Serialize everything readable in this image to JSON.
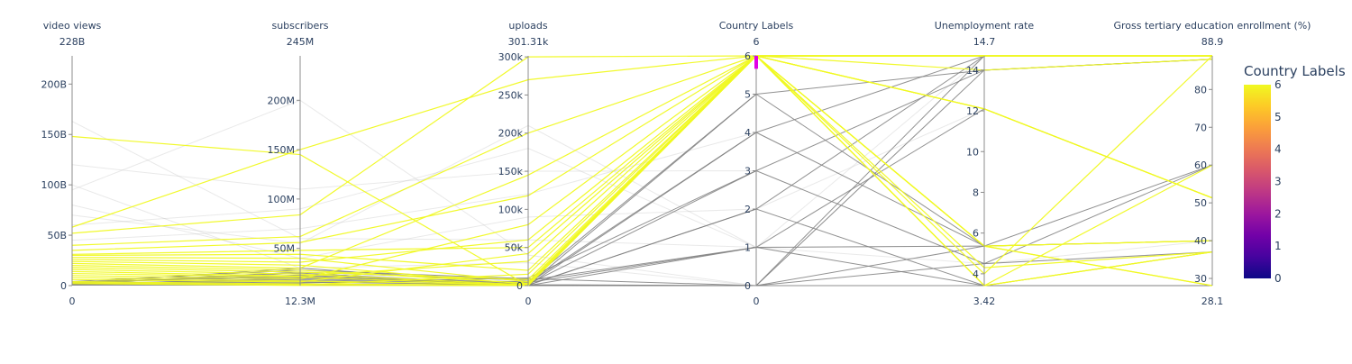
{
  "chart_data": {
    "type": "parcoords",
    "color_variable": "Country Labels",
    "colorscale": [
      "#0d0887",
      "#46039f",
      "#7201a8",
      "#9c179e",
      "#bd3786",
      "#d8576b",
      "#ed7953",
      "#fb9f3a",
      "#fdca26",
      "#f0f921"
    ],
    "filtered_color": "#7f7f7f",
    "selection_color": "#e000e6",
    "constraint": {
      "dimension": "Country Labels",
      "range": [
        5.85,
        6.0
      ]
    },
    "dimensions": [
      {
        "label": "video views",
        "range_label_max": "228B",
        "range_label_min": "0",
        "range": [
          0,
          228000000000
        ],
        "ticks": [
          {
            "v": 0,
            "t": "0"
          },
          {
            "v": 50000000000,
            "t": "50B"
          },
          {
            "v": 100000000000,
            "t": "100B"
          },
          {
            "v": 150000000000,
            "t": "150B"
          },
          {
            "v": 200000000000,
            "t": "200B"
          }
        ]
      },
      {
        "label": "subscribers",
        "range_label_max": "245M",
        "range_label_min": "12.3M",
        "range": [
          12300000,
          245000000
        ],
        "ticks": [
          {
            "v": 50000000,
            "t": "50M"
          },
          {
            "v": 100000000,
            "t": "100M"
          },
          {
            "v": 150000000,
            "t": "150M"
          },
          {
            "v": 200000000,
            "t": "200M"
          }
        ]
      },
      {
        "label": "uploads",
        "range_label_max": "301.31k",
        "range_label_min": "0",
        "range": [
          0,
          301310
        ],
        "ticks": [
          {
            "v": 0,
            "t": "0"
          },
          {
            "v": 50000,
            "t": "50k"
          },
          {
            "v": 100000,
            "t": "100k"
          },
          {
            "v": 150000,
            "t": "150k"
          },
          {
            "v": 200000,
            "t": "200k"
          },
          {
            "v": 250000,
            "t": "250k"
          },
          {
            "v": 300000,
            "t": "300k"
          }
        ]
      },
      {
        "label": "Country Labels",
        "range_label_max": "6",
        "range_label_min": "0",
        "range": [
          0,
          6
        ],
        "ticks": [
          {
            "v": 0,
            "t": "0"
          },
          {
            "v": 1,
            "t": "1"
          },
          {
            "v": 2,
            "t": "2"
          },
          {
            "v": 3,
            "t": "3"
          },
          {
            "v": 4,
            "t": "4"
          },
          {
            "v": 5,
            "t": "5"
          },
          {
            "v": 6,
            "t": "6"
          }
        ]
      },
      {
        "label": "Unemployment rate",
        "range_label_max": "14.7",
        "range_label_min": "3.42",
        "range": [
          3.42,
          14.7
        ],
        "ticks": [
          {
            "v": 4,
            "t": "4"
          },
          {
            "v": 6,
            "t": "6"
          },
          {
            "v": 8,
            "t": "8"
          },
          {
            "v": 10,
            "t": "10"
          },
          {
            "v": 12,
            "t": "12"
          },
          {
            "v": 14,
            "t": "14"
          }
        ]
      },
      {
        "label": "Gross tertiary education enrollment (%)",
        "range_label_max": "88.9",
        "range_label_min": "28.1",
        "range": [
          28.1,
          88.9
        ],
        "ticks": [
          {
            "v": 30,
            "t": "30"
          },
          {
            "v": 40,
            "t": "40"
          },
          {
            "v": 50,
            "t": "50"
          },
          {
            "v": 60,
            "t": "60"
          },
          {
            "v": 70,
            "t": "70"
          },
          {
            "v": 80,
            "t": "80"
          }
        ]
      }
    ],
    "colorbar": {
      "title": "Country Labels",
      "range": [
        0,
        6
      ],
      "ticks": [
        {
          "v": 0,
          "t": "0"
        },
        {
          "v": 1,
          "t": "1"
        },
        {
          "v": 2,
          "t": "2"
        },
        {
          "v": 3,
          "t": "3"
        },
        {
          "v": 4,
          "t": "4"
        },
        {
          "v": 5,
          "t": "5"
        },
        {
          "v": 6,
          "t": "6"
        }
      ]
    },
    "rows_highlighted": [
      [
        148000000000,
        145000000,
        0,
        6,
        14.7,
        88.9
      ],
      [
        58000000000,
        150000000,
        270000,
        6,
        12.1,
        51.3
      ],
      [
        52000000000,
        84000000,
        300000,
        6,
        14.7,
        88.9
      ],
      [
        40000000000,
        62000000,
        200000,
        6,
        14.0,
        88.0
      ],
      [
        35000000000,
        56000000,
        118000,
        6,
        12.1,
        51.3
      ],
      [
        31000000000,
        48000000,
        50000,
        6,
        5.36,
        28.1
      ],
      [
        30000000000,
        44000000,
        20000,
        6,
        4.0,
        88.9
      ],
      [
        28000000000,
        40000000,
        5000,
        6,
        5.36,
        40.0
      ],
      [
        26000000000,
        36000000,
        60000,
        6,
        3.42,
        60.0
      ],
      [
        24000000000,
        33000000,
        2000,
        6,
        3.42,
        37.0
      ],
      [
        22000000000,
        30000000,
        145000,
        6,
        14.7,
        88.9
      ],
      [
        20000000000,
        28000000,
        3000,
        6,
        12.1,
        51.3
      ],
      [
        18000000000,
        26000000,
        8000,
        6,
        14.7,
        88.9
      ],
      [
        16000000000,
        24000000,
        1000,
        6,
        4.3,
        37.0
      ],
      [
        14000000000,
        22000000,
        32000,
        6,
        5.36,
        40.0
      ],
      [
        12000000000,
        21000000,
        500,
        6,
        14.7,
        88.9
      ],
      [
        10000000000,
        19000000,
        80000,
        6,
        5.36,
        28.1
      ],
      [
        8000000000,
        17000000,
        1500,
        6,
        14.7,
        88.9
      ],
      [
        6000000000,
        16000000,
        42000,
        6,
        14.7,
        88.9
      ],
      [
        4000000000,
        14000000,
        600,
        6,
        12.1,
        51.3
      ],
      [
        3000000000,
        13000000,
        15000,
        6,
        3.42,
        37.0
      ],
      [
        2000000000,
        12500000,
        300,
        6,
        14.7,
        88.9
      ]
    ],
    "rows_filtered": [
      [
        1000000000,
        20000000,
        5000,
        5,
        14.0,
        88.0
      ],
      [
        2000000000,
        25000000,
        1000,
        5,
        5.36,
        40.0
      ],
      [
        1500000000,
        18000000,
        3000,
        4,
        14.7,
        88.9
      ],
      [
        3000000000,
        22000000,
        500,
        4,
        5.36,
        60.0
      ],
      [
        800000000,
        15000000,
        10000,
        3,
        14.0,
        88.0
      ],
      [
        2500000000,
        30000000,
        2000,
        3,
        4.5,
        37.0
      ],
      [
        1200000000,
        16000000,
        800,
        2,
        14.7,
        88.9
      ],
      [
        3500000000,
        21000000,
        600,
        2,
        3.42,
        28.1
      ],
      [
        1800000000,
        19000000,
        4000,
        1,
        5.36,
        40.0
      ],
      [
        900000000,
        14000000,
        200,
        1,
        12.1,
        51.3
      ],
      [
        2200000000,
        26000000,
        7000,
        1,
        3.42,
        37.0
      ],
      [
        600000000,
        13000000,
        100,
        0,
        14.0,
        88.0
      ],
      [
        1400000000,
        17000000,
        300,
        0,
        4.5,
        60.0
      ],
      [
        2800000000,
        23000000,
        1200,
        0,
        3.42,
        28.1
      ],
      [
        4000000000,
        28000000,
        9000,
        0,
        14.7,
        88.9
      ],
      [
        700000000,
        12800000,
        150,
        0,
        5.36,
        40.0
      ]
    ],
    "rows_background": [
      [
        163000000000,
        60000000,
        60000,
        1,
        5.36,
        40.0
      ],
      [
        95000000000,
        200000000,
        40000,
        0,
        14.0,
        88.0
      ],
      [
        120000000000,
        110000000,
        150000,
        3,
        4.5,
        37.0
      ],
      [
        80000000000,
        40000000,
        90000,
        2,
        12.1,
        51.3
      ],
      [
        60000000000,
        90000000,
        180000,
        1,
        14.7,
        88.9
      ],
      [
        45000000000,
        70000000,
        120000,
        4,
        5.36,
        60.0
      ],
      [
        100000000000,
        30000000,
        30000,
        0,
        3.42,
        28.1
      ],
      [
        70000000000,
        55000000,
        210000,
        1,
        4.5,
        40.0
      ]
    ]
  }
}
